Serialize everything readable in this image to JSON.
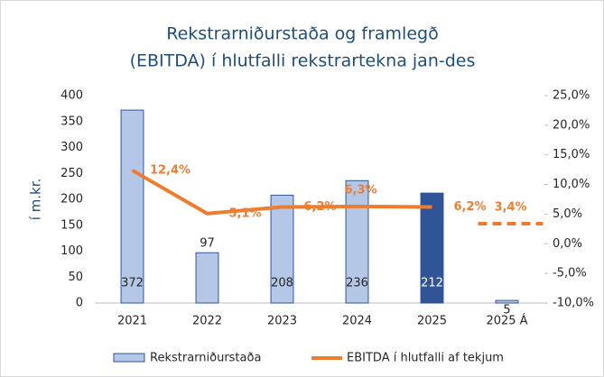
{
  "chart_data": {
    "type": "bar-line",
    "title": [
      "Rekstrarniðurstaða og framlegð",
      "(EBITDA) í hlutfalli rekstrartekna jan-des"
    ],
    "y_label": "í m.kr.",
    "categories": [
      "2021",
      "2022",
      "2023",
      "2024",
      "2025",
      "2025 Á"
    ],
    "series": [
      {
        "name": "Rekstrarniðurstaða",
        "type": "bar",
        "color": "#b4c7e7",
        "edge_color": "#2f5597",
        "colors": [
          "#b4c7e7",
          "#b4c7e7",
          "#b4c7e7",
          "#b4c7e7",
          "#2f5597",
          "#b4c7e7"
        ],
        "values": [
          372,
          97,
          208,
          236,
          212,
          5
        ]
      },
      {
        "name": "EBITDA í hlutfalli af tekjum",
        "type": "line",
        "axis": "y2",
        "color": "#ed7d31",
        "values": [
          12.4,
          5.1,
          6.2,
          6.3,
          6.2,
          3.4
        ],
        "value_labels": [
          "12,4%",
          "5,1%",
          "6,2%",
          "6,3%",
          "6,2%",
          "3,4%"
        ],
        "dashed": [
          false,
          false,
          false,
          false,
          false,
          true
        ]
      }
    ],
    "ylim": [
      0,
      400
    ],
    "yticks": [
      0,
      50,
      100,
      150,
      200,
      250,
      300,
      350,
      400
    ],
    "y2lim": [
      -10,
      25
    ],
    "y2ticks": [
      {
        "value": -10,
        "label": "-10,0%"
      },
      {
        "value": -5,
        "label": "-5,0%"
      },
      {
        "value": 0,
        "label": "0,0%"
      },
      {
        "value": 5,
        "label": "5,0%"
      },
      {
        "value": 10,
        "label": "10,0%"
      },
      {
        "value": 15,
        "label": "15,0%"
      },
      {
        "value": 20,
        "label": "20,0%"
      },
      {
        "value": 25,
        "label": "25,0%"
      }
    ],
    "grid": false,
    "legend": "bottom"
  }
}
